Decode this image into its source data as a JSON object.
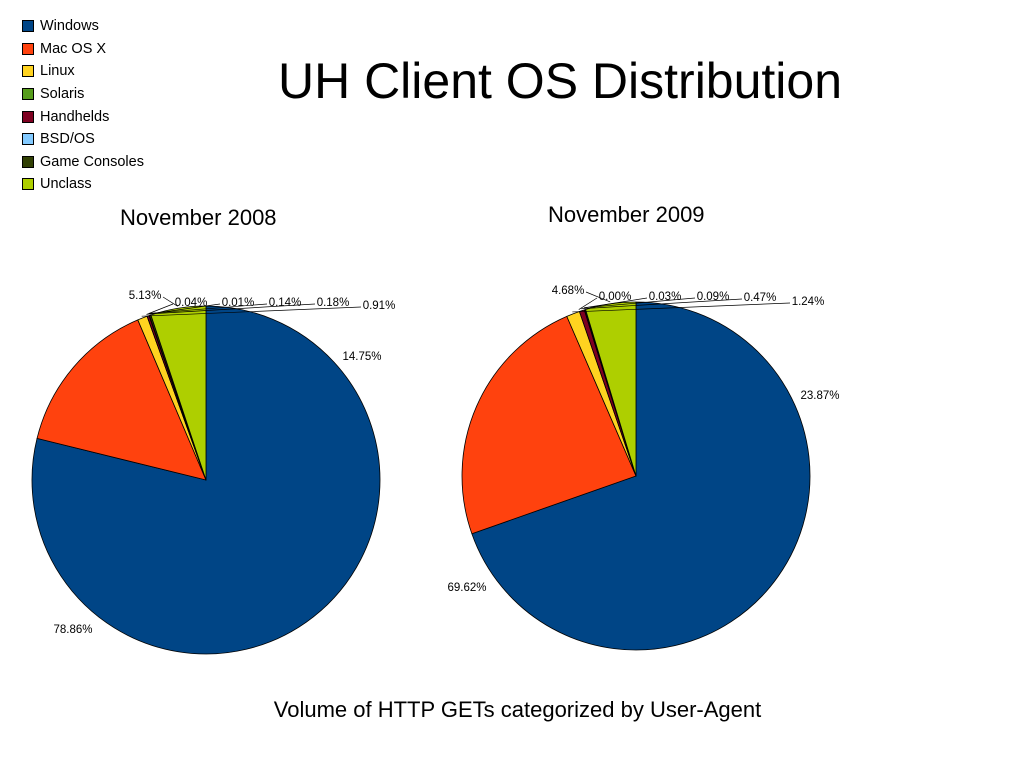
{
  "title": "UH Client OS Distribution",
  "caption": "Volume of HTTP GETs categorized by User-Agent",
  "legend": [
    {
      "label": "Windows",
      "color": "#004586"
    },
    {
      "label": "Mac OS X",
      "color": "#ff420e"
    },
    {
      "label": "Linux",
      "color": "#ffd320"
    },
    {
      "label": "Solaris",
      "color": "#579d1c"
    },
    {
      "label": "Handhelds",
      "color": "#7e0021"
    },
    {
      "label": "BSD/OS",
      "color": "#83caff"
    },
    {
      "label": "Game Consoles",
      "color": "#314004"
    },
    {
      "label": "Unclass",
      "color": "#aecf00"
    }
  ],
  "chart_data": [
    {
      "type": "pie",
      "title": "November 2008",
      "categories": [
        "Windows",
        "Mac OS X",
        "Linux",
        "Solaris",
        "Handhelds",
        "BSD/OS",
        "Game Consoles",
        "Unclass"
      ],
      "values": [
        78.86,
        14.75,
        0.91,
        0.01,
        0.18,
        0.04,
        0.14,
        5.13
      ],
      "labels": [
        "78.86%",
        "14.75%",
        "0.91%",
        "0.01%",
        "0.18%",
        "0.04%",
        "0.14%",
        "5.13%"
      ],
      "legend_position": "top-left"
    },
    {
      "type": "pie",
      "title": "November 2009",
      "categories": [
        "Windows",
        "Mac OS X",
        "Linux",
        "Solaris",
        "Handhelds",
        "BSD/OS",
        "Game Consoles",
        "Unclass"
      ],
      "values": [
        69.62,
        23.87,
        1.24,
        0.0,
        0.47,
        0.03,
        0.09,
        4.68
      ],
      "labels": [
        "69.62%",
        "23.87%",
        "1.24%",
        "0.00%",
        "0.47%",
        "0.03%",
        "0.09%",
        "4.68%"
      ],
      "legend_position": "top-left"
    }
  ]
}
